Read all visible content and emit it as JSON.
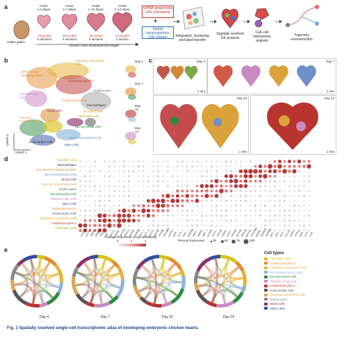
{
  "panel_labels": {
    "a": "a",
    "b": "b",
    "c": "c",
    "d": "d",
    "e": "e"
  },
  "panel_a": {
    "species": "Gallus gallus",
    "stages": [
      {
        "name": "HH24",
        "days": "(~4 days)",
        "samples": "73 pooled",
        "sections": "5 sections"
      },
      {
        "name": "HH31",
        "days": "(~7 days)",
        "samples": "48 pooled",
        "sections": "4 sections"
      },
      {
        "name": "HH36",
        "days": "(~10 days)",
        "samples": "36 pooled",
        "sections": "2 sections"
      },
      {
        "name": "HH40",
        "days": "(~14 days)",
        "samples": "12 pooled",
        "sections": "1 section"
      }
    ],
    "timeline_label": "Chicken heart developmental stages",
    "scrna_label": "scRNA sequencing (10x Chromium)",
    "spatial_label": "Spatial transcriptomics (10x Visium)",
    "plus": "+",
    "steps": [
      "Integration, clustering, and label transfer",
      "Spatially resolved GE analysis",
      "Cell–cell interactions analysis",
      "Trajectory reconstruction"
    ]
  },
  "panel_b": {
    "clusters": [
      "MT-enriched cardiomyocytes",
      "Immature myocardial cells",
      "Cardiomyocytes-1",
      "TMSB4X high cells",
      "Erythrocytes",
      "Macrophages",
      "Cardiomyocytes-2",
      "Mural cells",
      "Dendritic cells",
      "Fibroblast cells",
      "Vascular endothelial cells",
      "Epi-epicardial cells",
      "Epi-mesenchymal cells",
      "Endocardial cells",
      "Valve cells"
    ],
    "axis_y": "UMAP 2",
    "axis_x": "UMAP 1",
    "day_labels": [
      "Day 4",
      "Day 7",
      "Day 10",
      "Day 14"
    ]
  },
  "panel_c": {
    "days": [
      "Day 4",
      "Day 7",
      "Day 10",
      "Day 14"
    ],
    "scale": "1 mm"
  },
  "panel_d": {
    "rows": [
      {
        "name": "Dendritic cells",
        "color": "#e3a21a"
      },
      {
        "name": "Macrophages",
        "color": "#333333"
      },
      {
        "name": "MT-enriched cardiomyocytes",
        "color": "#d98a2b"
      },
      {
        "name": "Epi-mesenchymal cells",
        "color": "#8bb5d9"
      },
      {
        "name": "Mural cells",
        "color": "#8e2f6a"
      },
      {
        "name": "Vascular endothelial cells",
        "color": "#e0a35a"
      },
      {
        "name": "Erythrocytes",
        "color": "#888888"
      },
      {
        "name": "Epi-epicardial cells",
        "color": "#2b8a3e"
      },
      {
        "name": "TMSB4X high cells",
        "color": "#c98bc2"
      },
      {
        "name": "Valve cells",
        "color": "#2f4fa0"
      },
      {
        "name": "Cardiomyocytes-2",
        "color": "#e58a2e"
      },
      {
        "name": "Endocardial cells",
        "color": "#555555"
      },
      {
        "name": "Immature myocardial cells",
        "color": "#e5b23a"
      },
      {
        "name": "Cardiomyocytes-1",
        "color": "#b8342f"
      },
      {
        "name": "Fibroblast cells",
        "color": "#d9c21a"
      }
    ],
    "genes": [
      "POSTN",
      "COL1A1",
      "TNNT2",
      "TNNC1",
      "TTN",
      "MB",
      "MYL2",
      "NPPA",
      "NKX2-5",
      "TBX5",
      "TBX20",
      "HAND2",
      "ISL1",
      "WT1",
      "TCF21",
      "TBX18",
      "UPK3B",
      "PECAM1",
      "CDH5",
      "KDR",
      "FLT1",
      "TIE1",
      "NFATC1",
      "HBA1",
      "HBBA",
      "HBE",
      "ALAS2",
      "CD74",
      "CSF1R",
      "C1QA",
      "LCP1",
      "PTPRC",
      "ACTA2",
      "TAGLN",
      "MYH11",
      "PDGFRB",
      "RGS5",
      "TMSB4X",
      "TMSB10",
      "MT1",
      "MT2",
      "MT3",
      "CCL19",
      "CD83",
      "XCR1",
      "IRF8",
      "FLT3",
      "IL1B"
    ],
    "legend_expr_title": "Average Expression (Log normalized)",
    "legend_expr_ticks": [
      "0",
      "1",
      "2"
    ],
    "legend_pct_title": "Percent Expressed",
    "legend_pct_ticks": [
      "25",
      "50",
      "75",
      "100"
    ]
  },
  "panel_e": {
    "days": [
      "Day 4",
      "Day 7",
      "Day 10",
      "Day 14"
    ],
    "legend_title": "Cell types",
    "legend_items": [
      {
        "name": "Fibroblast cells",
        "color": "#d9c21a"
      },
      {
        "name": "Cardiomyocytes-2",
        "color": "#e58a2e"
      },
      {
        "name": "Immature myocardial cells",
        "color": "#e5b23a"
      },
      {
        "name": "Epi-mesenchymal cells",
        "color": "#8bb5d9"
      },
      {
        "name": "Epi-epicardial cells",
        "color": "#2b8a3e"
      },
      {
        "name": "TMSB4X high cells",
        "color": "#c98bc2"
      },
      {
        "name": "Cardiomyocytes-1",
        "color": "#b8342f"
      },
      {
        "name": "Endocardial cells",
        "color": "#555555"
      },
      {
        "name": "Vascular endothelial cells",
        "color": "#e0a35a"
      },
      {
        "name": "Erythrocytes",
        "color": "#888888"
      },
      {
        "name": "Mural cells",
        "color": "#8e2f6a"
      },
      {
        "name": "Valve cells",
        "color": "#2f4fa0"
      }
    ]
  },
  "caption": "Fig. 1 Spatially resolved single-cell transcriptomic atlas of developing embryonic chicken hearts."
}
